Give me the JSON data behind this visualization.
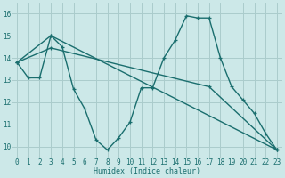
{
  "bg_color": "#cce8e8",
  "grid_color": "#aacccc",
  "line_color": "#1a6e6e",
  "xlabel": "Humidex (Indice chaleur)",
  "xlim": [
    -0.5,
    23.5
  ],
  "ylim": [
    9.5,
    16.5
  ],
  "yticks": [
    10,
    11,
    12,
    13,
    14,
    15,
    16
  ],
  "xticks": [
    0,
    1,
    2,
    3,
    4,
    5,
    6,
    7,
    8,
    9,
    10,
    11,
    12,
    13,
    14,
    15,
    16,
    17,
    18,
    19,
    20,
    21,
    22,
    23
  ],
  "series1_x": [
    0,
    1,
    2,
    3,
    4,
    5,
    6,
    7,
    8,
    9,
    10,
    11,
    12,
    13,
    14,
    15,
    16,
    17,
    18,
    19,
    20,
    21,
    22,
    23
  ],
  "series1_y": [
    13.8,
    13.1,
    13.1,
    15.0,
    14.5,
    12.6,
    11.7,
    10.3,
    9.85,
    10.4,
    11.1,
    12.65,
    12.65,
    14.0,
    14.8,
    15.9,
    15.8,
    15.8,
    14.0,
    12.7,
    12.1,
    11.5,
    10.6,
    9.85
  ],
  "series2_x": [
    0,
    3,
    23
  ],
  "series2_y": [
    13.8,
    15.0,
    9.85
  ],
  "series3_x": [
    0,
    3,
    17,
    23
  ],
  "series3_y": [
    13.8,
    14.45,
    12.7,
    9.85
  ]
}
